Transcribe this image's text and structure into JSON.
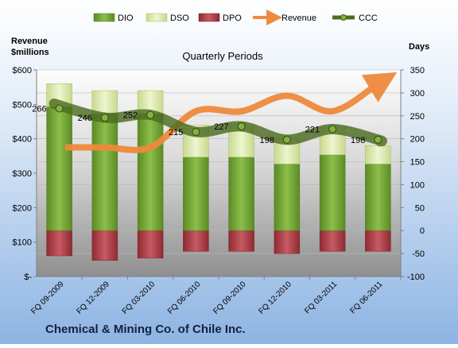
{
  "chart_data": {
    "type": "combo-bar-line",
    "subtitle": "Quarterly Periods",
    "company": "Chemical & Mining Co. of Chile Inc.",
    "left_axis": {
      "label_line1": "Revenue",
      "label_line2": "$millions",
      "ticks": [
        "$-",
        "$100",
        "$200",
        "$300",
        "$400",
        "$500",
        "$600"
      ],
      "ylim": [
        0,
        600
      ]
    },
    "right_axis": {
      "label": "Days",
      "ticks": [
        "-100",
        "-50",
        "0",
        "50",
        "100",
        "150",
        "200",
        "250",
        "300",
        "350"
      ],
      "ylim": [
        -100,
        350
      ]
    },
    "categories": [
      "FQ 09-2009",
      "FQ 12-2009",
      "FQ 03-2010",
      "FQ 06-2010",
      "FQ 09-2010",
      "FQ 12-2010",
      "FQ 03-2011",
      "FQ 06-2011"
    ],
    "legend": {
      "dio": "DIO",
      "dso": "DSO",
      "dpo": "DPO",
      "revenue": "Revenue",
      "ccc": "CCC"
    },
    "series": {
      "dio": [
        270,
        255,
        255,
        160,
        160,
        145,
        165,
        145
      ],
      "dso": [
        50,
        50,
        50,
        70,
        70,
        55,
        60,
        40
      ],
      "dpo": [
        55,
        65,
        60,
        45,
        45,
        50,
        45,
        45
      ],
      "ccc": [
        266,
        246,
        252,
        215,
        227,
        198,
        221,
        198
      ],
      "revenue": [
        375,
        375,
        375,
        480,
        480,
        525,
        480,
        560
      ]
    },
    "ccc_labels": [
      "266",
      "246",
      "252",
      "215",
      "227",
      "198",
      "221",
      "198"
    ],
    "colors": {
      "dio": "#77a33a",
      "dso": "#d7e4a7",
      "dpo": "#b1414a",
      "revenue": "#ee8a3c",
      "ccc": "#4d6b22"
    }
  }
}
